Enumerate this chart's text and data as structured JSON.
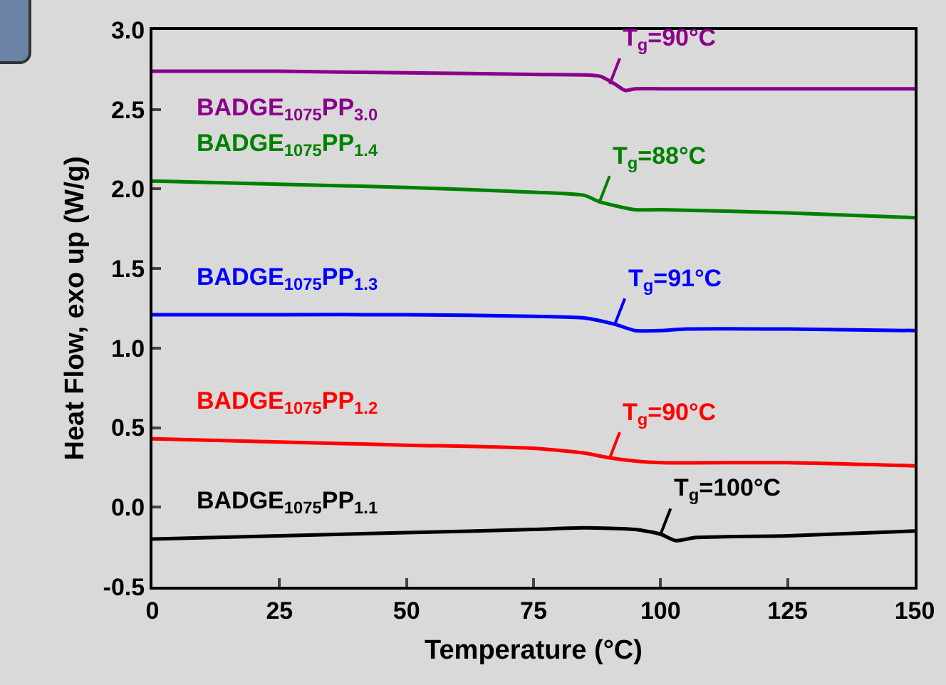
{
  "chart_data": {
    "type": "line",
    "xlabel": "Temperature (°C)",
    "ylabel": "Heat Flow, exo up (W/g)",
    "xlim": [
      0,
      150
    ],
    "xticks": [
      0,
      25,
      50,
      75,
      100,
      125,
      150
    ],
    "ylim": [
      -0.5,
      3.0
    ],
    "yticks": [
      -0.5,
      {
        "value": 0,
        "label": "0.0"
      },
      0.5,
      {
        "value": 1,
        "label": "1.0"
      },
      1.5,
      {
        "value": 2,
        "label": "2.0"
      },
      2.5,
      {
        "value": 3,
        "label": "3.0"
      }
    ],
    "grid": false,
    "legend": false,
    "marker": "none",
    "line_style": "solid",
    "series": [
      {
        "name": "BADGE$_{1075}$PP$_{3.0}$",
        "color": "#8b008b",
        "x": [
          0,
          25,
          50,
          75,
          88,
          91,
          93,
          95,
          100,
          125,
          150
        ],
        "values": [
          2.74,
          2.74,
          2.73,
          2.72,
          2.71,
          2.66,
          2.62,
          2.63,
          2.63,
          2.63,
          2.63
        ]
      },
      {
        "name": "BADGE$_{1075}$PP$_{1.4}$",
        "color": "#008000",
        "x": [
          0,
          25,
          50,
          75,
          85,
          88,
          95,
          100,
          125,
          150
        ],
        "values": [
          2.05,
          2.03,
          2.01,
          1.98,
          1.96,
          1.92,
          1.87,
          1.87,
          1.85,
          1.82
        ]
      },
      {
        "name": "BADGE$_{1075}$PP$_{1.3}$",
        "color": "#0000ff",
        "x": [
          0,
          25,
          50,
          75,
          85,
          91,
          95,
          100,
          105,
          125,
          150
        ],
        "values": [
          1.21,
          1.21,
          1.21,
          1.2,
          1.19,
          1.15,
          1.11,
          1.11,
          1.12,
          1.12,
          1.11
        ]
      },
      {
        "name": "BADGE$_{1075}$PP$_{1.2}$",
        "color": "#ff0000",
        "x": [
          0,
          25,
          50,
          75,
          85,
          90,
          95,
          100,
          125,
          150
        ],
        "values": [
          0.43,
          0.41,
          0.39,
          0.37,
          0.34,
          0.31,
          0.29,
          0.28,
          0.28,
          0.26
        ]
      },
      {
        "name": "BADGE$_{1075}$PP$_{1.1}$",
        "color": "#000000",
        "x": [
          0,
          25,
          50,
          75,
          85,
          95,
          100,
          103,
          107,
          125,
          150
        ],
        "values": [
          -0.2,
          -0.18,
          -0.16,
          -0.14,
          -0.13,
          -0.14,
          -0.17,
          -0.21,
          -0.19,
          -0.18,
          -0.15
        ]
      }
    ],
    "annotations": [
      {
        "text": "T$_{g}$=90°C",
        "x": 90,
        "y": 2.66
      },
      {
        "text": "T$_{g}$=88°C",
        "x": 88,
        "y": 1.92
      },
      {
        "text": "T$_{g}$=91°C",
        "x": 91,
        "y": 1.15
      },
      {
        "text": "T$_{g}$=90°C",
        "x": 90,
        "y": 0.31
      },
      {
        "text": "T$_{g}$=100°C",
        "x": 100,
        "y": -0.17
      }
    ]
  }
}
